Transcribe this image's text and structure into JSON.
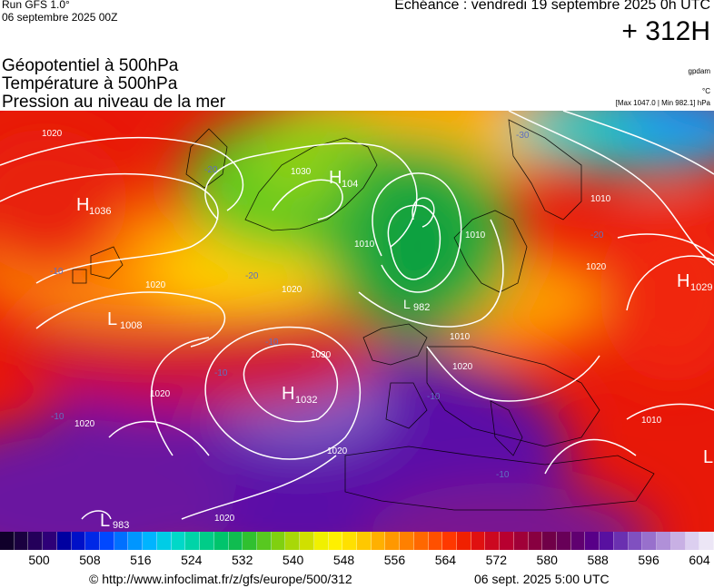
{
  "header": {
    "run": "Run GFS 1.0°",
    "run_date": "06 septembre 2025 00Z",
    "valid": "Echéance : vendredi 19 septembre 2025 0h UTC",
    "lead": "+ 312H",
    "titles": [
      "Géopotentiel à 500hPa",
      "Température à 500hPa",
      "Pression au niveau de la mer"
    ],
    "brand": "gpdam",
    "unit": "°C",
    "minmax": "[Max 1047.0 | Min 982.1] hPa"
  },
  "pressure_centers": [
    {
      "type": "H",
      "value": "1036"
    },
    {
      "type": "H",
      "value": "104"
    },
    {
      "type": "L",
      "value": "1008"
    },
    {
      "type": "H",
      "value": "1032"
    },
    {
      "type": "L",
      "value": "982"
    },
    {
      "type": "H",
      "value": "1029"
    },
    {
      "type": "L",
      "value": "983"
    },
    {
      "type": "L",
      "value": ""
    }
  ],
  "isobar_labels": [
    "1020",
    "1020",
    "1020",
    "1020",
    "1020",
    "1020",
    "1020",
    "1030",
    "1030",
    "1010",
    "1010",
    "1010",
    "1010",
    "1010",
    "1020",
    "1020"
  ],
  "temp_labels": [
    "-20",
    "-20",
    "-30",
    "-10",
    "-10",
    "-10",
    "-10",
    "-10",
    "-10",
    "-20"
  ],
  "legend": {
    "ticks": [
      "500",
      "508",
      "516",
      "524",
      "532",
      "540",
      "548",
      "556",
      "564",
      "572",
      "580",
      "588",
      "596",
      "604"
    ],
    "colors": [
      "#10002a",
      "#1a0040",
      "#24005a",
      "#2e0078",
      "#0000a0",
      "#0010c8",
      "#0028e6",
      "#0048ff",
      "#0070ff",
      "#0096ff",
      "#00b4ff",
      "#00cce6",
      "#00d8c8",
      "#00d4a8",
      "#00cc88",
      "#00c46c",
      "#10bc50",
      "#30c030",
      "#58c820",
      "#80d010",
      "#a8d808",
      "#d0e000",
      "#f0f000",
      "#fff000",
      "#ffe000",
      "#ffc800",
      "#ffb000",
      "#ff9800",
      "#ff8000",
      "#ff6800",
      "#ff5000",
      "#ff3800",
      "#f02000",
      "#e01010",
      "#cc0820",
      "#b80030",
      "#a00038",
      "#880040",
      "#700048",
      "#680058",
      "#600070",
      "#580088",
      "#5810a0",
      "#6a30b0",
      "#8050c0",
      "#9870cc",
      "#b090d8",
      "#c8b0e4",
      "#dccff0",
      "#ece6f6"
    ]
  },
  "footer": {
    "url": "© http://www.infoclimat.fr/z/gfs/europe/500/312",
    "date": "06 sept. 2025  5:00 UTC"
  }
}
